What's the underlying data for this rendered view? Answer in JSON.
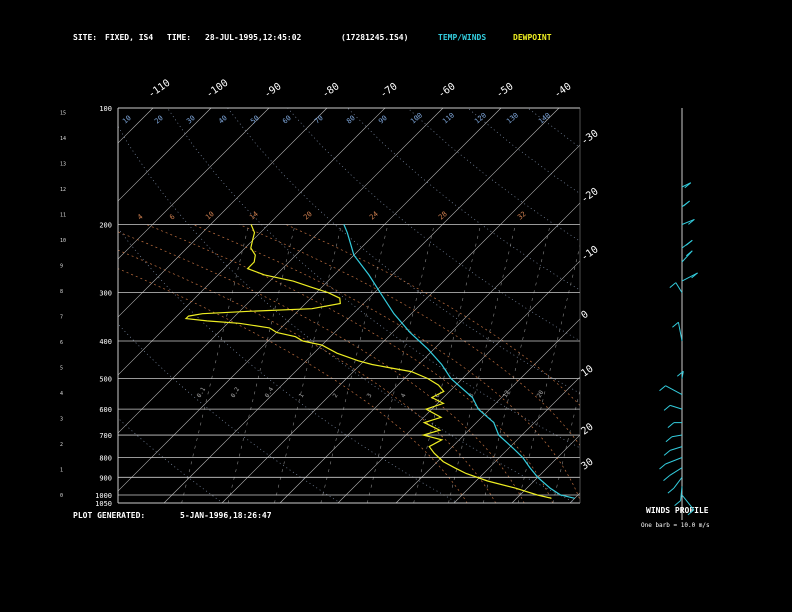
{
  "header": {
    "site_label": "SITE:",
    "site_value": "FIXED, IS4",
    "time_label": "TIME:",
    "time_value": "28-JUL-1995,12:45:02",
    "file_id": "(17281245.IS4)",
    "temp_label": "TEMP/WINDS",
    "dew_label": "DEWPOINT",
    "temp_color": "#33ccdd",
    "dew_color": "#eeee22"
  },
  "footer": {
    "generated_label": "PLOT GENERATED:",
    "generated_value": "5-JAN-1996,18:26:47",
    "winds_title": "WINDS PROFILE",
    "winds_note": "One barb = 10.0 m/s"
  },
  "chart_data": {
    "type": "line",
    "title": "",
    "y_axis": "pressure (mb)",
    "pressure_levels": [
      100,
      200,
      300,
      400,
      500,
      600,
      700,
      800,
      900,
      1000,
      1050
    ],
    "height_ticks_km": [
      0,
      1,
      2,
      3,
      4,
      5,
      6,
      7,
      8,
      9,
      10,
      11,
      12,
      13,
      14,
      15
    ],
    "top_temp_ticks": [
      -110,
      -100,
      -90,
      -80,
      -70,
      -60,
      -50,
      -40
    ],
    "right_temp_ticks": [
      -30,
      -20,
      -10,
      0,
      10,
      20,
      30
    ],
    "dry_adiabat_labels": [
      10,
      20,
      30,
      40,
      50,
      60,
      70,
      80,
      90,
      100,
      110,
      120,
      130,
      140
    ],
    "moist_adiabat_labels": [
      10,
      15,
      20,
      25,
      30,
      35,
      40
    ],
    "mixing_ratio_labels_top": [
      4,
      6,
      10,
      14,
      20,
      24,
      28,
      32
    ],
    "mixing_ratio_labels_bottom": [
      0.1,
      0.2,
      0.4,
      1.0,
      2.0,
      3.0,
      4.0,
      6.0,
      8.0,
      12.0,
      20.0
    ],
    "series": [
      {
        "name": "TEMP/WINDS",
        "pressure": [
          1020,
          1000,
          960,
          900,
          850,
          800,
          760,
          700,
          650,
          600,
          560,
          500,
          460,
          420,
          380,
          340,
          300,
          270,
          240,
          210,
          200
        ],
        "temperature": [
          30,
          27,
          24,
          20,
          17,
          14,
          11,
          6,
          3,
          -2,
          -5,
          -12,
          -16,
          -21,
          -27,
          -33,
          -39,
          -44,
          -50,
          -55,
          -57
        ]
      },
      {
        "name": "DEWPOINT",
        "pressure": [
          1020,
          1000,
          960,
          920,
          880,
          850,
          820,
          780,
          750,
          720,
          700,
          680,
          650,
          630,
          600,
          580,
          560,
          540,
          520,
          500,
          480,
          470,
          460,
          450,
          430,
          410,
          400,
          390,
          380,
          370,
          360,
          355,
          350,
          345,
          340,
          335,
          330,
          320,
          310,
          300,
          290,
          280,
          270,
          260,
          250,
          240,
          230,
          220,
          210,
          200
        ],
        "temperature": [
          26,
          23,
          18,
          12,
          7,
          4,
          1,
          -2,
          -4,
          -3,
          -7,
          -5,
          -9,
          -7,
          -11,
          -9,
          -12,
          -11,
          -13,
          -16,
          -20,
          -24,
          -28,
          -31,
          -36,
          -40,
          -44,
          -46,
          -50,
          -52,
          -58,
          -64,
          -68,
          -68,
          -66,
          -58,
          -48,
          -44,
          -45,
          -48,
          -52,
          -56,
          -62,
          -66,
          -66,
          -67,
          -69,
          -70,
          -71,
          -73
        ]
      }
    ],
    "winds": [
      {
        "pressure": 1000,
        "speed_ms": 22,
        "dir_deg": 200
      },
      {
        "pressure": 950,
        "speed_ms": 28,
        "dir_deg": 225
      },
      {
        "pressure": 900,
        "speed_ms": 30,
        "dir_deg": 240
      },
      {
        "pressure": 850,
        "speed_ms": 32,
        "dir_deg": 250
      },
      {
        "pressure": 800,
        "speed_ms": 35,
        "dir_deg": 255
      },
      {
        "pressure": 750,
        "speed_ms": 30,
        "dir_deg": 260
      },
      {
        "pressure": 700,
        "speed_ms": 28,
        "dir_deg": 265
      },
      {
        "pressure": 650,
        "speed_ms": 26,
        "dir_deg": 270
      },
      {
        "pressure": 600,
        "speed_ms": 30,
        "dir_deg": 280
      },
      {
        "pressure": 550,
        "speed_ms": 36,
        "dir_deg": 290
      },
      {
        "pressure": 500,
        "speed_ms": 20,
        "dir_deg": 300
      },
      {
        "pressure": 400,
        "speed_ms": 34,
        "dir_deg": 320
      },
      {
        "pressure": 300,
        "speed_ms": 28,
        "dir_deg": 300
      },
      {
        "pressure": 280,
        "speed_ms": 12,
        "dir_deg": 340
      },
      {
        "pressure": 250,
        "speed_ms": 18,
        "dir_deg": 330
      },
      {
        "pressure": 230,
        "speed_ms": 14,
        "dir_deg": 320
      },
      {
        "pressure": 200,
        "speed_ms": 10,
        "dir_deg": 315
      },
      {
        "pressure": 180,
        "speed_ms": 14,
        "dir_deg": 305
      },
      {
        "pressure": 160,
        "speed_ms": 12,
        "dir_deg": 300
      }
    ]
  }
}
